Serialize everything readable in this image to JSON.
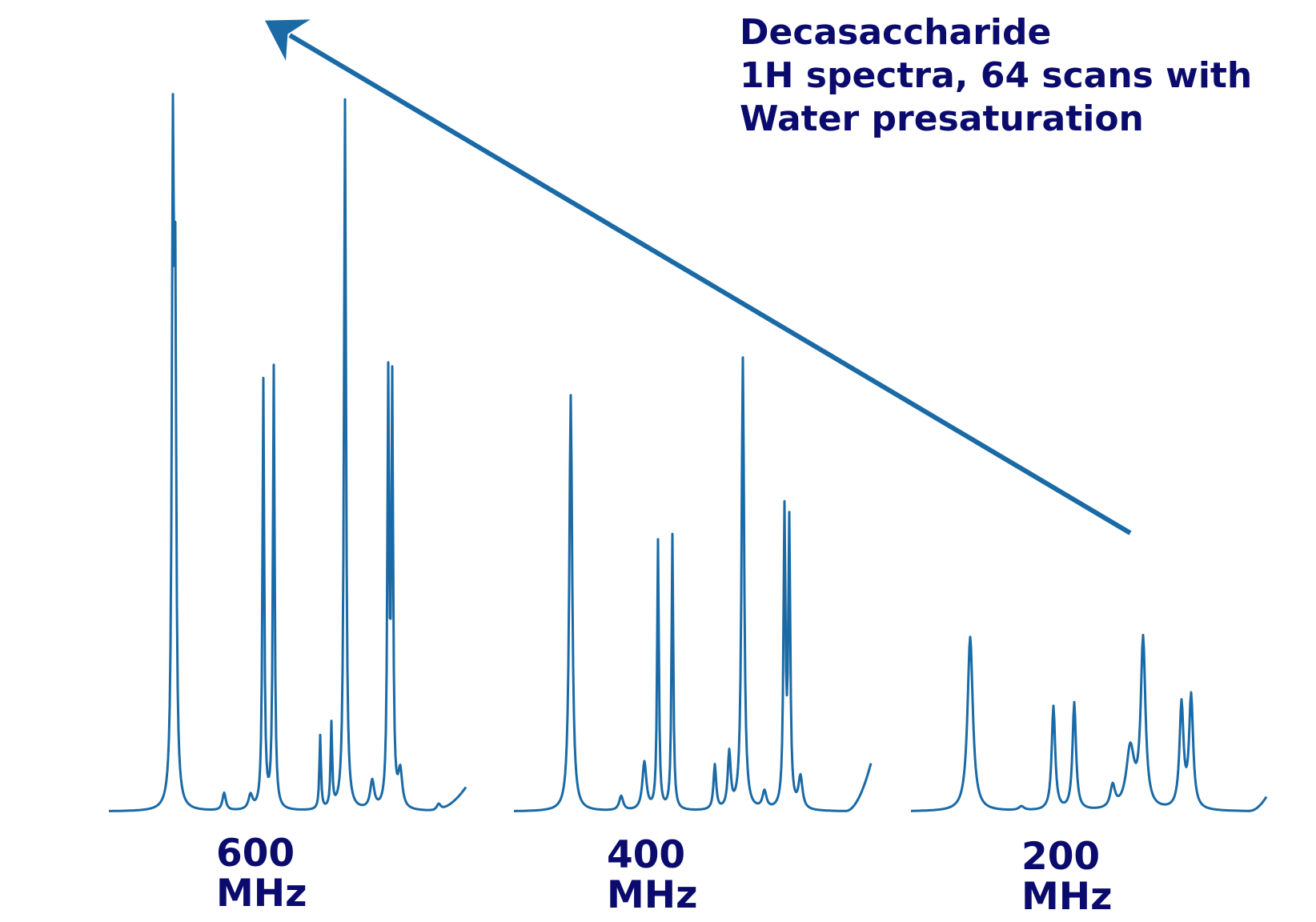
{
  "title": {
    "line1": "Decasaccharide",
    "line2": "1H spectra, 64 scans with",
    "line3": "Water presaturation"
  },
  "spectra": [
    {
      "freq": "600",
      "unit": "MHz"
    },
    {
      "freq": "400",
      "unit": "MHz"
    },
    {
      "freq": "200",
      "unit": "MHz"
    }
  ],
  "colors": {
    "trace": "#1a6aa6",
    "arrow": "#1a6aa6",
    "text": "#0b0b6e"
  }
}
